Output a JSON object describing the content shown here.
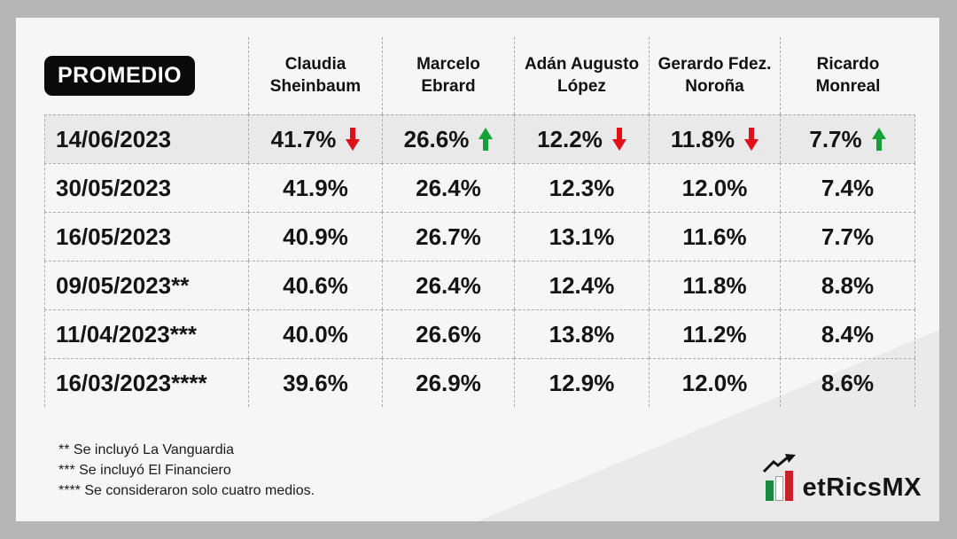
{
  "table": {
    "badge": "PROMEDIO",
    "columns": [
      {
        "line1": "Claudia",
        "line2": "Sheinbaum"
      },
      {
        "line1": "Marcelo",
        "line2": "Ebrard"
      },
      {
        "line1": "Adán Augusto",
        "line2": "López"
      },
      {
        "line1": "Gerardo Fdez.",
        "line2": "Noroña"
      },
      {
        "line1": "Ricardo",
        "line2": "Monreal"
      }
    ],
    "rows": [
      {
        "date": "14/06/2023",
        "highlight": true,
        "cells": [
          {
            "value": "41.7%",
            "trend": "down"
          },
          {
            "value": "26.6%",
            "trend": "up"
          },
          {
            "value": "12.2%",
            "trend": "down"
          },
          {
            "value": "11.8%",
            "trend": "down"
          },
          {
            "value": "7.7%",
            "trend": "up"
          }
        ]
      },
      {
        "date": "30/05/2023",
        "highlight": false,
        "cells": [
          {
            "value": "41.9%"
          },
          {
            "value": "26.4%"
          },
          {
            "value": "12.3%"
          },
          {
            "value": "12.0%"
          },
          {
            "value": "7.4%"
          }
        ]
      },
      {
        "date": "16/05/2023",
        "highlight": false,
        "cells": [
          {
            "value": "40.9%"
          },
          {
            "value": "26.7%"
          },
          {
            "value": "13.1%"
          },
          {
            "value": "11.6%"
          },
          {
            "value": "7.7%"
          }
        ]
      },
      {
        "date": "09/05/2023**",
        "highlight": false,
        "cells": [
          {
            "value": "40.6%"
          },
          {
            "value": "26.4%"
          },
          {
            "value": "12.4%"
          },
          {
            "value": "11.8%"
          },
          {
            "value": "8.8%"
          }
        ]
      },
      {
        "date": "11/04/2023***",
        "highlight": false,
        "cells": [
          {
            "value": "40.0%"
          },
          {
            "value": "26.6%"
          },
          {
            "value": "13.8%"
          },
          {
            "value": "11.2%"
          },
          {
            "value": "8.4%"
          }
        ]
      },
      {
        "date": "16/03/2023****",
        "highlight": false,
        "cells": [
          {
            "value": "39.6%"
          },
          {
            "value": "26.9%"
          },
          {
            "value": "12.9%"
          },
          {
            "value": "12.0%"
          },
          {
            "value": "8.6%"
          }
        ]
      }
    ]
  },
  "footnotes": [
    "** Se incluyó La Vanguardia",
    "*** Se incluyó El Financiero",
    "**** Se consideraron solo cuatro medios."
  ],
  "logo": {
    "text": "etRicsMX"
  },
  "colors": {
    "trend_up": "#13a138",
    "trend_down": "#e11018",
    "highlight_row": "#e9e9e9",
    "card_bg": "#f6f6f6",
    "page_bg": "#b6b6b6"
  },
  "chart_data": {
    "type": "table",
    "title": "PROMEDIO",
    "categories": [
      "14/06/2023",
      "30/05/2023",
      "16/05/2023",
      "09/05/2023**",
      "11/04/2023***",
      "16/03/2023****"
    ],
    "series": [
      {
        "name": "Claudia Sheinbaum",
        "values": [
          41.7,
          41.9,
          40.9,
          40.6,
          40.0,
          39.6
        ]
      },
      {
        "name": "Marcelo Ebrard",
        "values": [
          26.6,
          26.4,
          26.7,
          26.4,
          26.6,
          26.9
        ]
      },
      {
        "name": "Adán Augusto López",
        "values": [
          12.2,
          12.3,
          13.1,
          12.4,
          13.8,
          12.9
        ]
      },
      {
        "name": "Gerardo Fdez. Noroña",
        "values": [
          11.8,
          12.0,
          11.6,
          11.8,
          11.2,
          12.0
        ]
      },
      {
        "name": "Ricardo Monreal",
        "values": [
          7.7,
          7.4,
          7.7,
          8.8,
          8.4,
          8.6
        ]
      }
    ],
    "latest_trends": {
      "Claudia Sheinbaum": "down",
      "Marcelo Ebrard": "up",
      "Adán Augusto López": "down",
      "Gerardo Fdez. Noroña": "down",
      "Ricardo Monreal": "up"
    },
    "units": "%",
    "legend_position": "none",
    "grid": "dashed"
  }
}
